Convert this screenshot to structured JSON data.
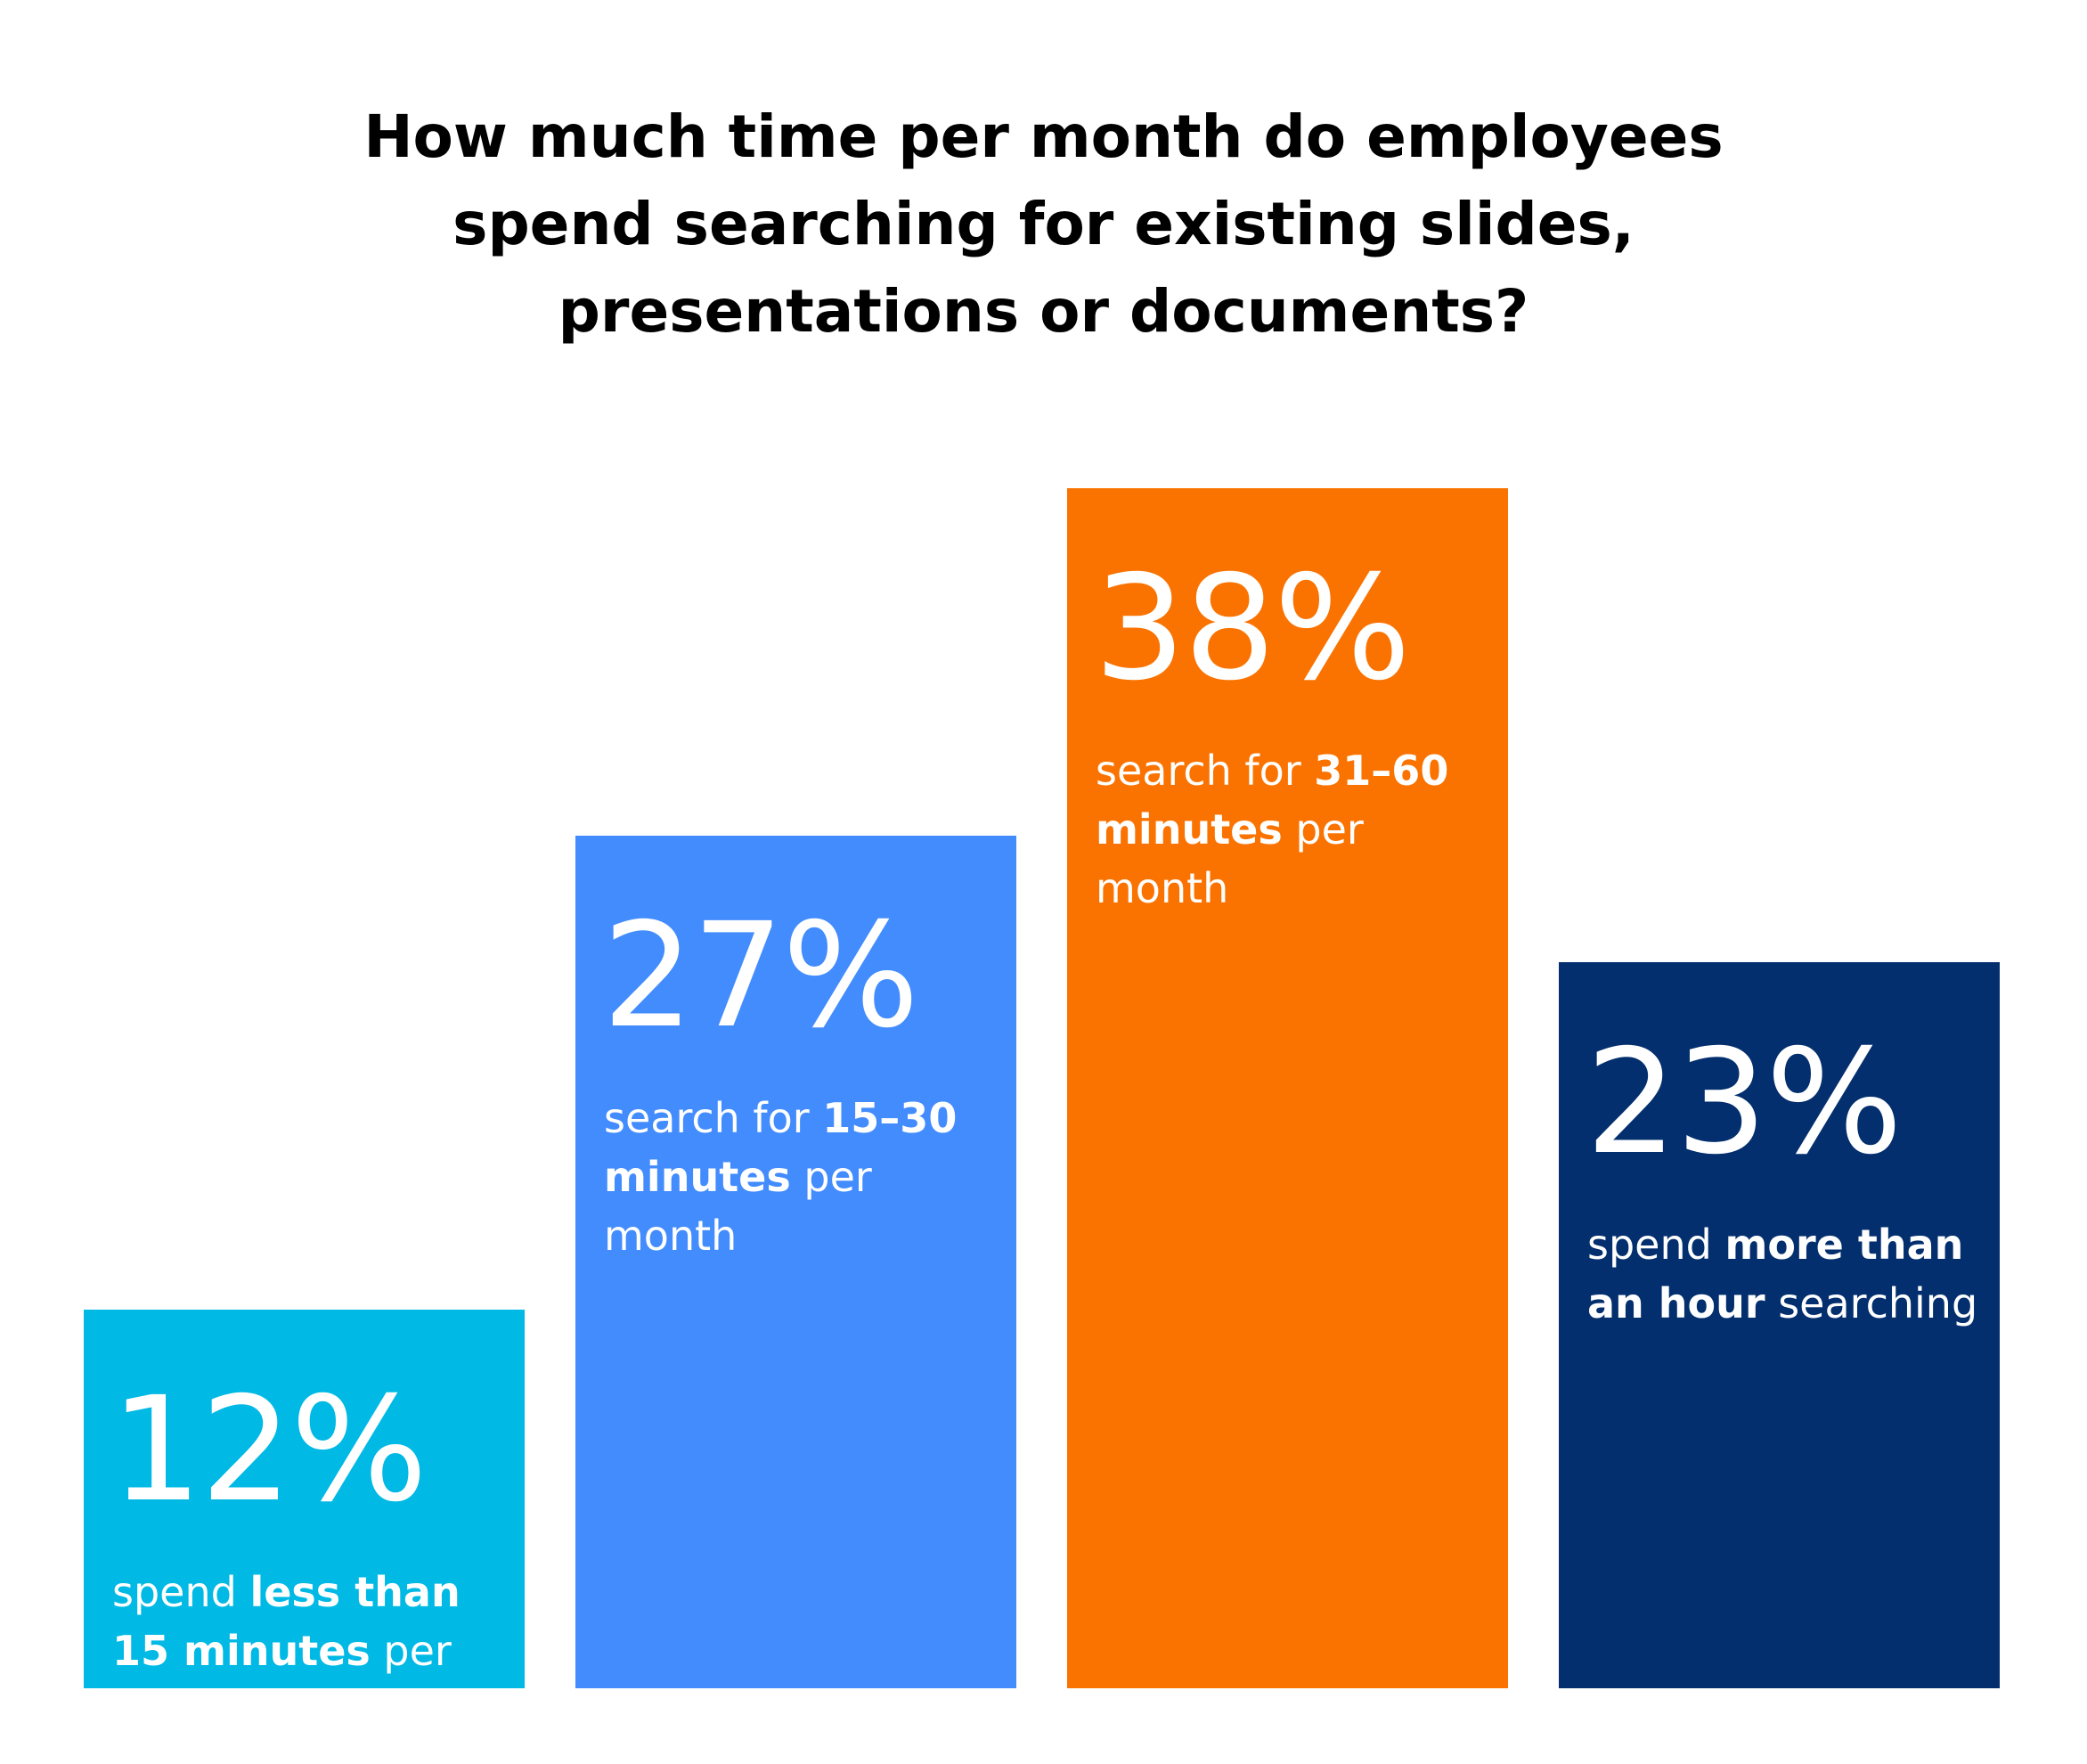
{
  "chart_data": {
    "type": "bar",
    "title_lines": [
      "How much time per month do employees",
      "spend searching for existing slides,",
      "presentations or documents?"
    ],
    "ylim": [
      0,
      38
    ],
    "bars": [
      {
        "value": 12,
        "label": "12%",
        "color": "#00B9E5",
        "desc_parts": [
          {
            "text": "spend ",
            "bold": false
          },
          {
            "text": "less than 15 minutes",
            "bold": true
          },
          {
            "text": " per month searching",
            "bold": false
          }
        ]
      },
      {
        "value": 27,
        "label": "27%",
        "color": "#438CFD",
        "desc_parts": [
          {
            "text": "search for ",
            "bold": false
          },
          {
            "text": "15–30 minutes",
            "bold": true
          },
          {
            "text": " per month",
            "bold": false
          }
        ]
      },
      {
        "value": 38,
        "label": "38%",
        "color": "#FA7301",
        "desc_parts": [
          {
            "text": "search for ",
            "bold": false
          },
          {
            "text": "31–60 minutes",
            "bold": true
          },
          {
            "text": " per month",
            "bold": false
          }
        ]
      },
      {
        "value": 23,
        "label": "23%",
        "color": "#032F6E",
        "desc_parts": [
          {
            "text": "spend ",
            "bold": false
          },
          {
            "text": "more than an hour",
            "bold": true
          },
          {
            "text": " searching",
            "bold": false
          }
        ]
      }
    ]
  }
}
